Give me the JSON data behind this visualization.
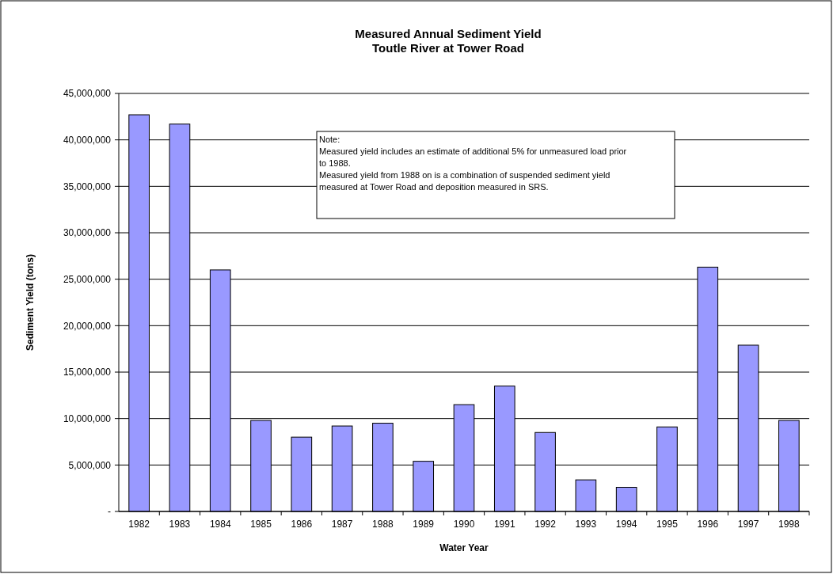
{
  "chart_data": {
    "type": "bar",
    "title": "Measured Annual Sediment Yield\nToutle River at Tower Road",
    "xlabel": "Water Year",
    "ylabel": "Sediment Yield (tons)",
    "categories": [
      "1982",
      "1983",
      "1984",
      "1985",
      "1986",
      "1987",
      "1988",
      "1989",
      "1990",
      "1991",
      "1992",
      "1993",
      "1994",
      "1995",
      "1996",
      "1997",
      "1998"
    ],
    "values": [
      42700000,
      41700000,
      26000000,
      9800000,
      8000000,
      9200000,
      9500000,
      5400000,
      11500000,
      13500000,
      8500000,
      3400000,
      2600000,
      9100000,
      26300000,
      17900000,
      9800000
    ],
    "color": "#9999ff",
    "ylim": [
      0,
      45000000
    ],
    "yticks": [
      {
        "value": 0,
        "label": "-"
      },
      {
        "value": 5000000,
        "label": "5,000,000"
      },
      {
        "value": 10000000,
        "label": "10,000,000"
      },
      {
        "value": 15000000,
        "label": "15,000,000"
      },
      {
        "value": 20000000,
        "label": "20,000,000"
      },
      {
        "value": 25000000,
        "label": "25,000,000"
      },
      {
        "value": 30000000,
        "label": "30,000,000"
      },
      {
        "value": 35000000,
        "label": "35,000,000"
      },
      {
        "value": 40000000,
        "label": "40,000,000"
      },
      {
        "value": 45000000,
        "label": "45,000,000"
      }
    ],
    "grid": "y",
    "annotations": [
      "Note:",
      "Measured yield includes an estimate of additional 5% for unmeasured load prior to 1988.",
      "Measured yield from 1988 on is a combination of suspended sediment yield measured at Tower Road and deposition measured in SRS."
    ]
  }
}
